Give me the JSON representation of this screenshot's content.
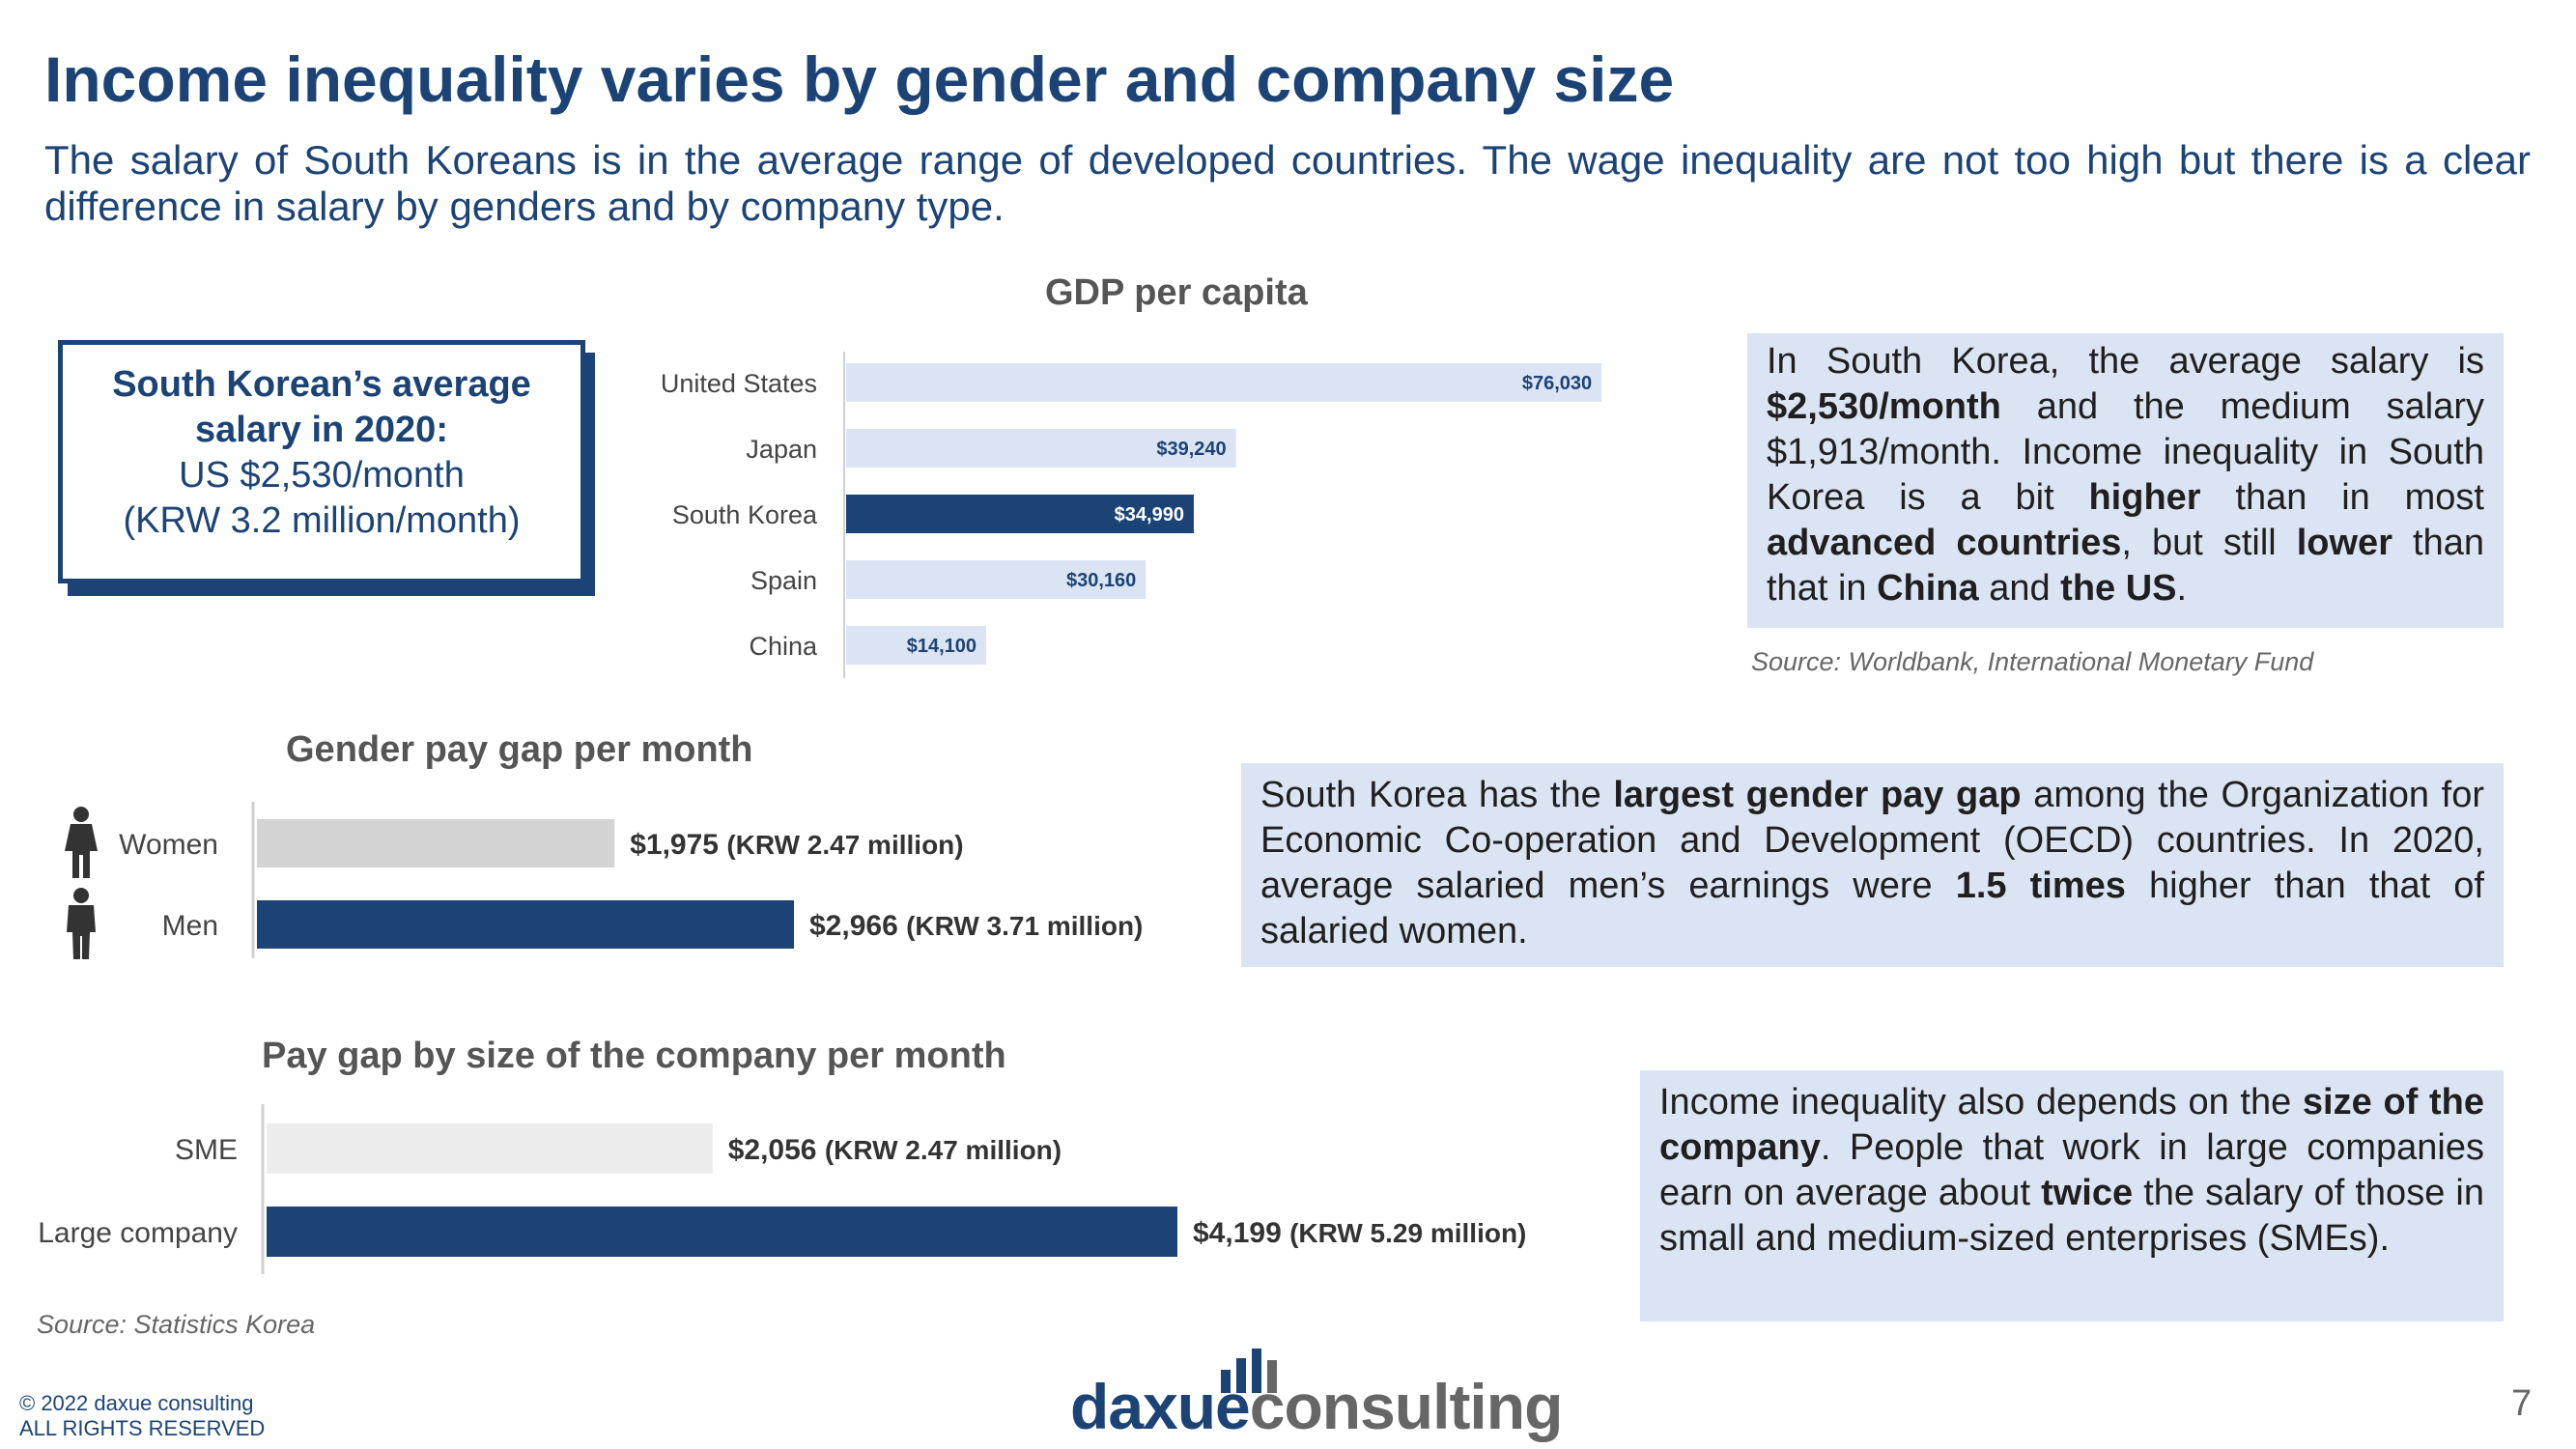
{
  "slide": {
    "title": "Income inequality varies by gender and company size",
    "subtitle": "The salary of South Koreans is in the average range of developed countries. The wage inequality are not too high but there is a clear difference in salary by genders and by company type.",
    "page_number": "7"
  },
  "callout": {
    "line1": "South Korean’s average",
    "line2": "salary in 2020:",
    "line3": "US $2,530/month",
    "line4": "(KRW 3.2 million/month)"
  },
  "info_boxes": {
    "gdp": [
      {
        "t": "In South Korea, the average salary is "
      },
      {
        "t": "$2,530/month",
        "b": true
      },
      {
        "t": " and the medium salary $1,913/month. Income inequality in South Korea is a bit "
      },
      {
        "t": "higher",
        "b": true
      },
      {
        "t": " than in most "
      },
      {
        "t": "advanced countries",
        "b": true
      },
      {
        "t": ", but still "
      },
      {
        "t": "lower",
        "b": true
      },
      {
        "t": " than that in "
      },
      {
        "t": "China",
        "b": true
      },
      {
        "t": " and "
      },
      {
        "t": "the US",
        "b": true
      },
      {
        "t": "."
      }
    ],
    "gender": [
      {
        "t": "South Korea has the "
      },
      {
        "t": "largest gender pay gap",
        "b": true
      },
      {
        "t": " among the Organization for Economic Co-operation and Development (OECD) countries. In 2020, average salaried men’s earnings were "
      },
      {
        "t": "1.5 times",
        "b": true
      },
      {
        "t": " higher than that of salaried women."
      }
    ],
    "company": [
      {
        "t": "Income inequality also depends on the "
      },
      {
        "t": "size of the company",
        "b": true
      },
      {
        "t": ". People that work in large companies earn on average about "
      },
      {
        "t": "twice",
        "b": true
      },
      {
        "t": " the salary of those in small and medium-sized enterprises (SMEs)."
      }
    ]
  },
  "sources": {
    "gdp": "Source: Worldbank, International Monetary Fund",
    "bottom": "Source: Statistics Korea"
  },
  "footer": {
    "copyright": "© 2022 daxue consulting",
    "rights": "ALL RIGHTS RESERVED",
    "logo_part1": "daxue",
    "logo_part2": "consulting"
  },
  "colors": {
    "navy": "#1c4375",
    "light_blue": "#dbe4f3",
    "gray": "#d3d3d3",
    "light_gray": "#ececec"
  },
  "chart_data": [
    {
      "type": "bar",
      "orientation": "horizontal",
      "title": "GDP per capita",
      "categories": [
        "United States",
        "Japan",
        "South Korea",
        "Spain",
        "China"
      ],
      "values": [
        76030,
        39240,
        34990,
        30160,
        14100
      ],
      "labels": [
        "$76,030",
        "$39,240",
        "$34,990",
        "$30,160",
        "$14,100"
      ],
      "highlight": "South Korea",
      "xlim": [
        0,
        80000
      ]
    },
    {
      "type": "bar",
      "orientation": "horizontal",
      "title": "Gender pay gap per month",
      "categories": [
        "Women",
        "Men"
      ],
      "values": [
        1975,
        2966
      ],
      "labels": [
        {
          "main": "$1,975",
          "sub": "(KRW 2.47 million)"
        },
        {
          "main": "$2,966",
          "sub": "(KRW 3.71 million)"
        }
      ],
      "icons": [
        "woman-icon",
        "man-icon"
      ]
    },
    {
      "type": "bar",
      "orientation": "horizontal",
      "title": "Pay gap by size of the company per month",
      "categories": [
        "SME",
        "Large company"
      ],
      "values": [
        2056,
        4199
      ],
      "labels": [
        {
          "main": "$2,056",
          "sub": "(KRW 2.47 million)"
        },
        {
          "main": "$4,199",
          "sub": "(KRW 5.29 million)"
        }
      ]
    }
  ]
}
